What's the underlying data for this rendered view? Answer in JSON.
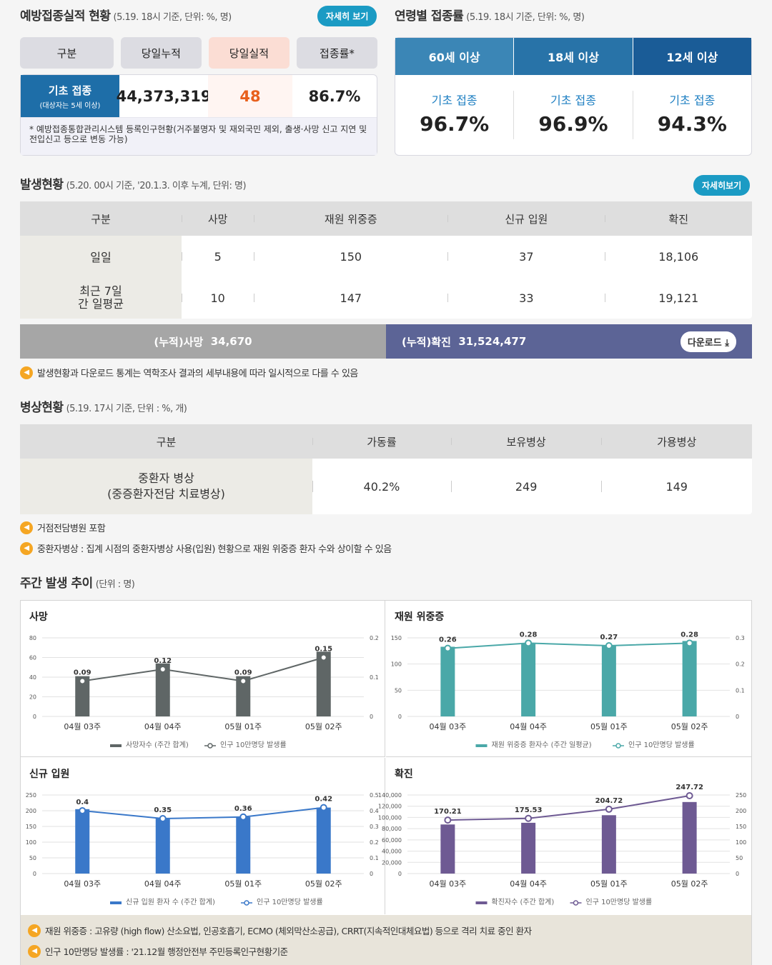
{
  "vaccination": {
    "title": "예방접종실적 현황",
    "subtitle": "(5.19. 18시 기준, 단위: %, 명)",
    "detail_btn": "자세히 보기",
    "headers": [
      "구분",
      "당일누적",
      "당일실적",
      "접종률*"
    ],
    "row_label": "기초 접종",
    "row_sublabel": "(대상자는 5세 이상)",
    "cumulative": "44,373,319",
    "daily": "48",
    "rate": "86.7%",
    "note": "* 예방접종통합관리시스템 등록인구현황(거주불명자 및 재외국민 제외, 출생·사망 신고 지연 및 전입신고 등으로 변동 가능)"
  },
  "age": {
    "title": "연령별 접종률",
    "subtitle": "(5.19. 18시 기준, 단위: %, 명)",
    "tabs": [
      "60세 이상",
      "18세 이상",
      "12세 이상"
    ],
    "tab_colors": [
      "#3b86b6",
      "#2873a8",
      "#1a5c97"
    ],
    "cols": [
      {
        "label": "기초 접종",
        "value": "96.7%"
      },
      {
        "label": "기초 접종",
        "value": "96.9%"
      },
      {
        "label": "기초 접종",
        "value": "94.3%"
      }
    ]
  },
  "occurrence": {
    "title": "발생현황",
    "subtitle": "(5.20. 00시 기준, '20.1.3. 이후 누계, 단위: 명)",
    "detail_btn": "자세히보기",
    "headers": [
      "구분",
      "사망",
      "재원 위중증",
      "신규 입원",
      "확진"
    ],
    "rows": [
      {
        "label": "일일",
        "values": [
          "5",
          "150",
          "37",
          "18,106"
        ]
      },
      {
        "label": "최근 7일간 일평균",
        "values": [
          "10",
          "147",
          "33",
          "19,121"
        ]
      }
    ],
    "cum_death_label": "(누적)사망",
    "cum_death_value": "34,670",
    "cum_conf_label": "(누적)확진",
    "cum_conf_value": "31,524,477",
    "download": "다운로드",
    "note": "발생현황과 다운로드 통계는 역학조사 결과의 세부내용에 따라 일시적으로 다를 수 있음"
  },
  "beds": {
    "title": "병상현황",
    "subtitle": "(5.19. 17시 기준, 단위 : %, 개)",
    "headers": [
      "구분",
      "가동률",
      "보유병상",
      "가용병상"
    ],
    "row_label1": "중환자 병상",
    "row_label2": "(중증환자전담 치료병상)",
    "values": [
      "40.2%",
      "249",
      "149"
    ],
    "notes": [
      "거점전담병원 포함",
      "중환자병상 : 집계 시점의 중환자병상 사용(입원) 현황으로 재원 위중증 환자 수와 상이할 수 있음"
    ]
  },
  "weekly": {
    "title": "주간 발생 추이",
    "subtitle": "(단위 : 명)",
    "footnotes": [
      "재원 위중증 : 고유량 (high flow) 산소요법, 인공호흡기, ECMO (체외막산소공급), CRRT(지속적인대체요법) 등으로 격리 치료 중인 환자",
      "인구 10만명당 발생률 : '21.12월 행정안전부 주민등록인구현황기준"
    ]
  },
  "chart_data": [
    {
      "type": "bar",
      "title": "사망",
      "categories": [
        "04월 03주",
        "04월 04주",
        "05월 01주",
        "05월 02주"
      ],
      "series": [
        {
          "name": "사망자수 (주간 합계)",
          "values": [
            41,
            54,
            41,
            66
          ],
          "color": "#5f6666"
        },
        {
          "name": "인구 10만명당 발생률",
          "values": [
            0.09,
            0.12,
            0.09,
            0.15
          ],
          "axis": "right",
          "color": "#5f6666"
        }
      ],
      "y_ticks": [
        "0",
        "20",
        "40",
        "60",
        "80"
      ],
      "y2_ticks": [
        "0",
        "0.1",
        "0.2"
      ],
      "ylim": [
        0,
        80
      ],
      "y2lim": [
        0,
        0.2
      ],
      "labels": [
        "0.09",
        "0.12",
        "0.09",
        "0.15"
      ]
    },
    {
      "type": "bar",
      "title": "재원 위중증",
      "categories": [
        "04월 03주",
        "04월 04주",
        "05월 01주",
        "05월 02주"
      ],
      "series": [
        {
          "name": "재원 위중증 환자수 (주간 일평균)",
          "values": [
            133,
            140,
            135,
            144
          ],
          "color": "#4aa8a8"
        },
        {
          "name": "인구 10만명당 발생률",
          "values": [
            0.26,
            0.28,
            0.27,
            0.28
          ],
          "axis": "right",
          "color": "#4aa8a8"
        }
      ],
      "y_ticks": [
        "0",
        "50",
        "100",
        "150"
      ],
      "y2_ticks": [
        "0",
        "0.1",
        "0.2",
        "0.3"
      ],
      "ylim": [
        0,
        150
      ],
      "y2lim": [
        0,
        0.3
      ],
      "labels": [
        "0.26",
        "0.28",
        "0.27",
        "0.28"
      ]
    },
    {
      "type": "bar",
      "title": "신규 입원",
      "categories": [
        "04월 03주",
        "04월 04주",
        "05월 01주",
        "05월 02주"
      ],
      "series": [
        {
          "name": "신규 입원 환자 수 (주간 합계)",
          "values": [
            205,
            175,
            180,
            210
          ],
          "color": "#3a78c9"
        },
        {
          "name": "인구 10만명당 발생률",
          "values": [
            0.4,
            0.35,
            0.36,
            0.42
          ],
          "axis": "right",
          "color": "#3a78c9"
        }
      ],
      "y_ticks": [
        "0",
        "50",
        "100",
        "150",
        "200",
        "250"
      ],
      "y2_ticks": [
        "0",
        "0.1",
        "0.2",
        "0.3",
        "0.4",
        "0.5"
      ],
      "ylim": [
        0,
        250
      ],
      "y2lim": [
        0,
        0.5
      ],
      "labels": [
        "0.4",
        "0.35",
        "0.36",
        "0.42"
      ]
    },
    {
      "type": "bar",
      "title": "확진",
      "categories": [
        "04월 03주",
        "04월 04주",
        "05월 01주",
        "05월 02주"
      ],
      "series": [
        {
          "name": "확진자수 (주간 합계)",
          "values": [
            87500,
            90500,
            104000,
            127500
          ],
          "color": "#6e5a93"
        },
        {
          "name": "인구 10만명당 발생률",
          "values": [
            170.21,
            175.53,
            204.72,
            247.72
          ],
          "axis": "right",
          "color": "#6e5a93"
        }
      ],
      "y_ticks": [
        "0",
        "20,000",
        "40,000",
        "60,000",
        "80,000",
        "100,000",
        "120,000",
        "140,000"
      ],
      "y2_ticks": [
        "0",
        "50",
        "100",
        "150",
        "200",
        "250"
      ],
      "ylim": [
        0,
        140000
      ],
      "y2lim": [
        0,
        250
      ],
      "labels": [
        "170.21",
        "175.53",
        "204.72",
        "247.72"
      ]
    }
  ]
}
